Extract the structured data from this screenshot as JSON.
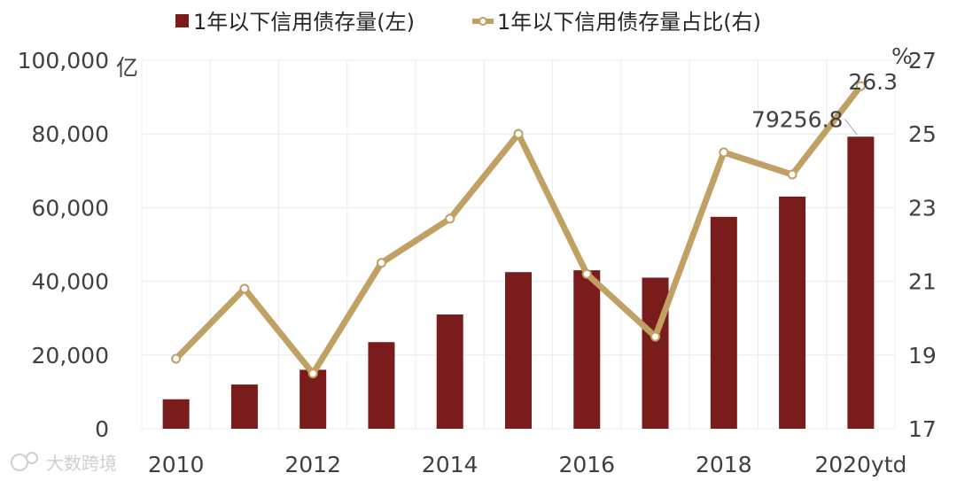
{
  "chart_data": {
    "type": "bar",
    "categories": [
      "2010",
      "2011",
      "2012",
      "2013",
      "2014",
      "2015",
      "2016",
      "2017",
      "2018",
      "2019",
      "2020ytd"
    ],
    "x_tick_labels": [
      "2010",
      "2012",
      "2014",
      "2016",
      "2018",
      "2020ytd"
    ],
    "series": [
      {
        "name": "1年以下信用债存量(左)",
        "type": "bar",
        "axis": "left",
        "color": "#7b1c1c",
        "values": [
          8000,
          12000,
          16000,
          23500,
          31000,
          42500,
          43000,
          41000,
          57500,
          63000,
          79256.8
        ]
      },
      {
        "name": "1年以下信用债存量占比(右)",
        "type": "line",
        "axis": "right",
        "color": "#c1a064",
        "values": [
          18.9,
          20.8,
          18.5,
          21.5,
          22.7,
          25.0,
          21.2,
          19.5,
          24.5,
          23.9,
          26.3
        ]
      }
    ],
    "y_left": {
      "unit": "亿",
      "ylim": [
        0,
        100000
      ],
      "ticks": [
        "0",
        "20,000",
        "40,000",
        "60,000",
        "80,000",
        "100,000"
      ]
    },
    "y_right": {
      "unit": "%",
      "ylim": [
        17,
        27
      ],
      "ticks": [
        "17",
        "19",
        "21",
        "23",
        "25",
        "27"
      ]
    },
    "annotations": [
      {
        "series": 0,
        "index": 10,
        "text": "79256.8"
      },
      {
        "series": 1,
        "index": 10,
        "text": "26.3"
      }
    ],
    "legend": "top",
    "grid": true,
    "watermark": "大数跨境"
  }
}
